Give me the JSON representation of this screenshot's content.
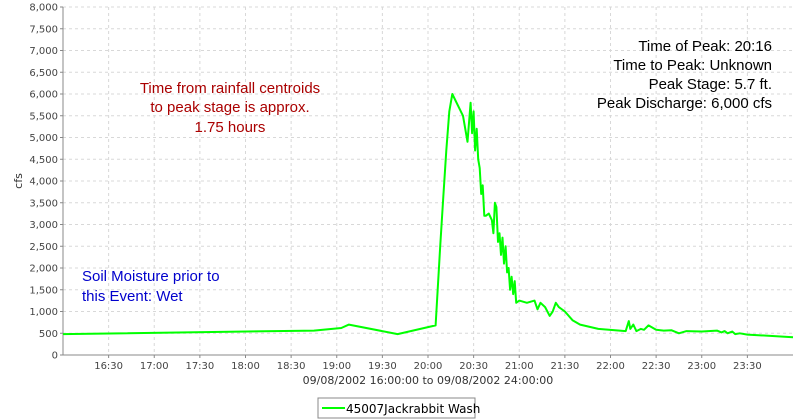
{
  "chart_data": {
    "type": "line",
    "title": "",
    "xlabel": "09/08/2002 16:00:00 to 09/08/2002 24:00:00",
    "ylabel": "cfs",
    "xlim": [
      "16:00",
      "24:00"
    ],
    "ylim": [
      0,
      8000
    ],
    "grid": true,
    "legend_position": "bottom",
    "y_ticks": [
      0,
      500,
      1000,
      1500,
      2000,
      2500,
      3000,
      3500,
      4000,
      4500,
      5000,
      5500,
      6000,
      6500,
      7000,
      7500,
      8000
    ],
    "y_tick_labels": [
      "0",
      "500",
      "1,000",
      "1,500",
      "2,000",
      "2,500",
      "3,000",
      "3,500",
      "4,000",
      "4,500",
      "5,000",
      "5,500",
      "6,000",
      "6,500",
      "7,000",
      "7,500",
      "8,000"
    ],
    "x_ticks": [
      "16:30",
      "17:00",
      "17:30",
      "18:00",
      "18:30",
      "19:00",
      "19:30",
      "20:00",
      "20:30",
      "21:00",
      "21:30",
      "22:00",
      "22:30",
      "23:00",
      "23:30"
    ],
    "series": [
      {
        "name": "45007Jackrabbit Wash",
        "color": "#00ff00",
        "x": [
          "16:00",
          "18:45",
          "19:03",
          "19:08",
          "19:40",
          "20:05",
          "20:08",
          "20:10",
          "20:12",
          "20:14",
          "20:16",
          "20:23",
          "20:26",
          "20:28",
          "20:29",
          "20:30",
          "20:31",
          "20:32",
          "20:33",
          "20:34",
          "20:35",
          "20:36",
          "20:37",
          "20:38",
          "20:40",
          "20:42",
          "20:43",
          "20:44",
          "20:45",
          "20:46",
          "20:47",
          "20:48",
          "20:49",
          "20:50",
          "20:51",
          "20:52",
          "20:53",
          "20:54",
          "20:55",
          "20:56",
          "20:57",
          "20:58",
          "21:00",
          "21:05",
          "21:10",
          "21:12",
          "21:14",
          "21:17",
          "21:20",
          "21:22",
          "21:24",
          "21:26",
          "21:30",
          "21:35",
          "21:40",
          "21:52",
          "22:10",
          "22:12",
          "22:13",
          "22:15",
          "22:17",
          "22:20",
          "22:22",
          "22:25",
          "22:30",
          "22:35",
          "22:40",
          "22:45",
          "22:50",
          "23:00",
          "23:10",
          "23:13",
          "23:15",
          "23:17",
          "23:20",
          "23:22",
          "23:25",
          "23:30",
          "24:00"
        ],
        "values": [
          480,
          560,
          620,
          700,
          480,
          680,
          2500,
          3600,
          4700,
          5600,
          6000,
          5500,
          4900,
          5800,
          5100,
          5600,
          4700,
          5200,
          4500,
          4300,
          3700,
          3900,
          3200,
          3200,
          3250,
          3100,
          2800,
          3500,
          3400,
          2600,
          2800,
          2300,
          2700,
          2100,
          2500,
          1900,
          2000,
          1500,
          1800,
          1400,
          1700,
          1200,
          1250,
          1200,
          1250,
          1050,
          1200,
          1100,
          900,
          1000,
          1200,
          1100,
          1000,
          800,
          700,
          600,
          550,
          780,
          600,
          700,
          550,
          600,
          580,
          680,
          580,
          560,
          570,
          500,
          550,
          540,
          560,
          520,
          550,
          500,
          540,
          480,
          500,
          470,
          410
        ]
      }
    ],
    "annotations": {
      "rainfall_lines": [
        "Time from rainfall centroids",
        "to peak stage is approx.",
        "1.75 hours"
      ],
      "rainfall_color": "#aa0000",
      "soil_lines": [
        "Soil Moisture prior to",
        "this Event: Wet"
      ],
      "soil_color": "#0000cc",
      "peak_lines": [
        "Time of Peak: 20:16",
        "Time to Peak: Unknown",
        "Peak Stage: 5.7 ft.",
        "Peak Discharge: 6,000 cfs"
      ],
      "peak_color": "#000000"
    }
  }
}
